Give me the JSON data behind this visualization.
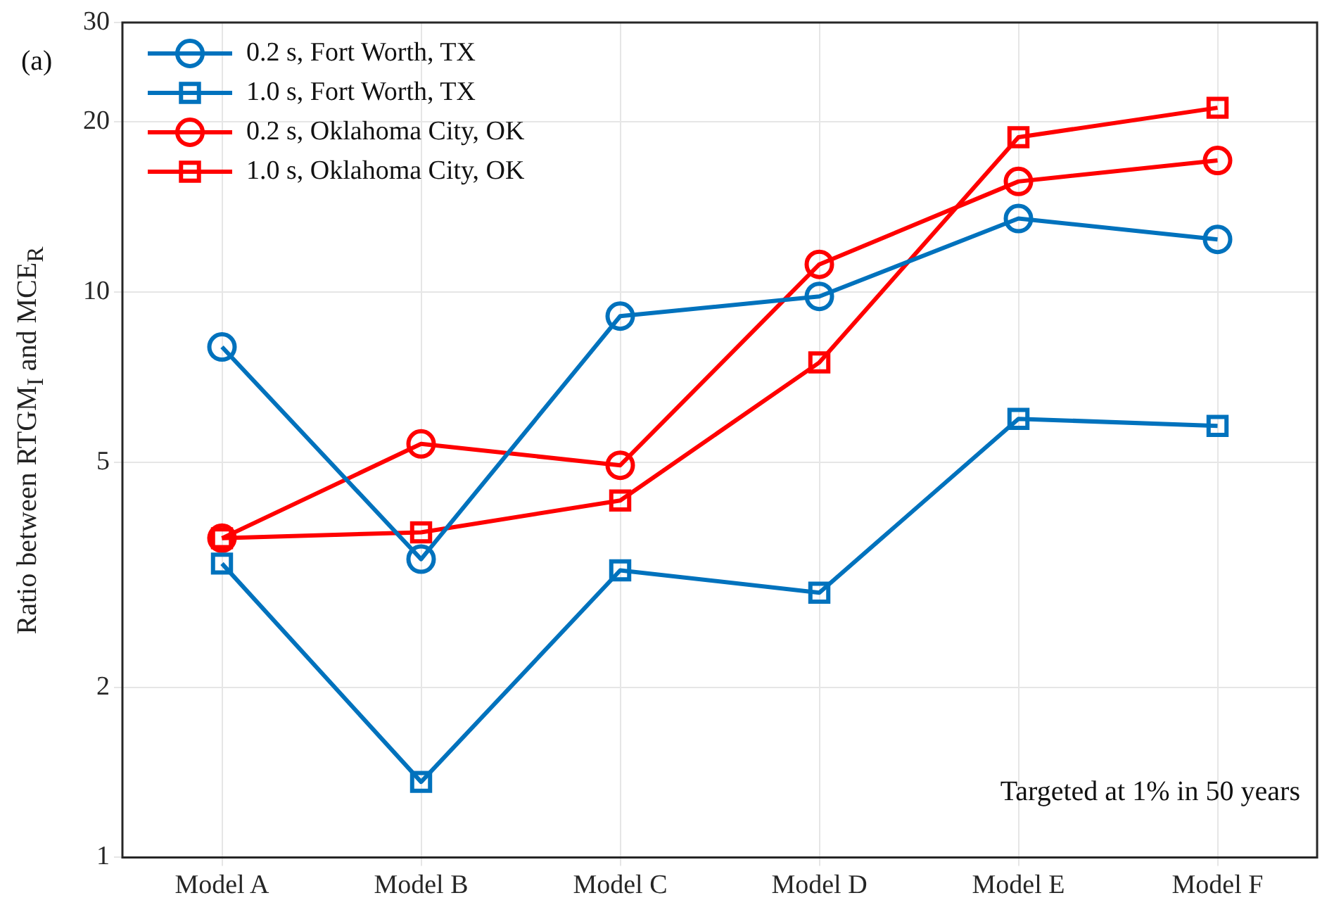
{
  "chart_data": {
    "type": "line",
    "ylabel": "Ratio between RTGM$_{I}$ and MCE$_{R}$",
    "categories": [
      "Model A",
      "Model B",
      "Model C",
      "Model D",
      "Model E",
      "Model F"
    ],
    "series": [
      {
        "name": "0.2 s, Fort Worth, TX",
        "color": "#0072bd",
        "marker": "circle",
        "values": [
          8.0,
          3.37,
          9.07,
          9.83,
          13.5,
          12.4
        ]
      },
      {
        "name": "1.0 s, Fort Worth, TX",
        "color": "#0072bd",
        "marker": "square",
        "values": [
          3.31,
          1.36,
          3.22,
          2.94,
          5.97,
          5.8
        ]
      },
      {
        "name": "0.2 s, Oklahoma City, OK",
        "color": "#ff0000",
        "marker": "circle",
        "values": [
          3.67,
          5.39,
          4.94,
          11.2,
          15.7,
          17.1
        ]
      },
      {
        "name": "1.0 s, Oklahoma City, OK",
        "color": "#ff0000",
        "marker": "square",
        "values": [
          3.67,
          3.76,
          4.28,
          7.51,
          18.8,
          21.2
        ]
      }
    ],
    "log": "y",
    "ylim": [
      1,
      30
    ],
    "yticks": [
      1,
      2,
      5,
      10,
      20,
      30
    ],
    "grid": true,
    "legend": "top left",
    "annotations": [
      "(a)",
      "Targeted at 1% in 50 years"
    ]
  }
}
